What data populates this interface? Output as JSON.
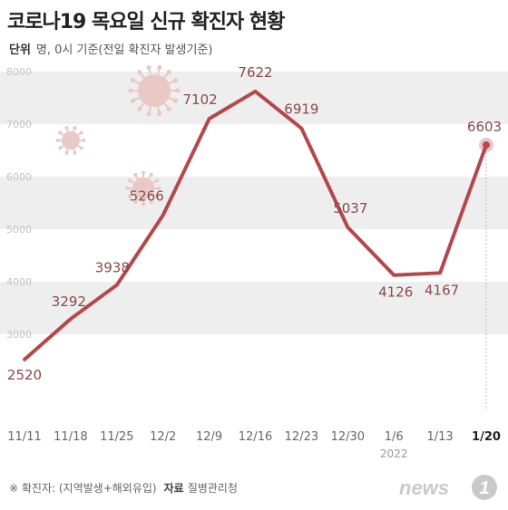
{
  "title": "코로나19 목요일 신규 확진자 현황",
  "subtitle": {
    "unit_label": "단위",
    "unit_text": "명, 0시 기준(전일 확진자 발생기준)"
  },
  "footer": {
    "note": "※ 확진자: (지역발생+해외유입)",
    "source_label": "자료",
    "source": "질병관리청"
  },
  "logo": {
    "text": "news",
    "mark": "1"
  },
  "colors": {
    "line": "#b5474c",
    "label": "#8a4a4a",
    "band": "#eeeeee",
    "axis_text": "#666666",
    "last_tick": "#222222",
    "virus": "#e9c8c5"
  },
  "chart_data": {
    "type": "line",
    "categories": [
      "11/11",
      "11/18",
      "11/25",
      "12/2",
      "12/9",
      "12/16",
      "12/23",
      "12/30",
      "1/6",
      "1/13",
      "1/20"
    ],
    "values": [
      2520,
      3292,
      3938,
      5266,
      7102,
      7622,
      6919,
      5037,
      4126,
      4167,
      6603
    ],
    "y_ticks": [
      8000,
      7000,
      6000,
      5000,
      4000,
      3000
    ],
    "ylim": [
      2000,
      8000
    ],
    "year_label": "2022",
    "title": "",
    "xlabel": "",
    "ylabel": "",
    "grid": "alternating horizontal bands",
    "highlight_last": true
  }
}
